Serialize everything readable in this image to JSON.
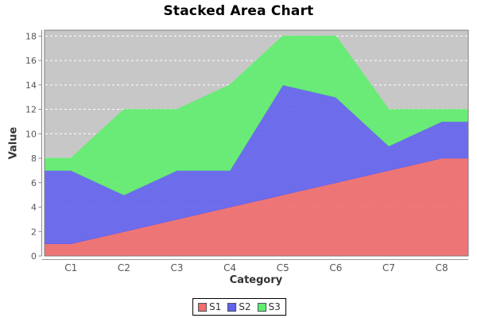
{
  "title": "Stacked Area Chart",
  "chart_data": {
    "type": "area",
    "stacked": true,
    "title": "Stacked Area Chart",
    "xlabel": "Category",
    "ylabel": "Value",
    "categories": [
      "C1",
      "C2",
      "C3",
      "C4",
      "C5",
      "C6",
      "C7",
      "C8"
    ],
    "series": [
      {
        "name": "S1",
        "color": "#f26c6c",
        "values": [
          1,
          2,
          3,
          4,
          5,
          6,
          7,
          8
        ]
      },
      {
        "name": "S2",
        "color": "#6363ee",
        "values": [
          6,
          3,
          4,
          3,
          9,
          7,
          2,
          3
        ]
      },
      {
        "name": "S3",
        "color": "#5fee6e",
        "values": [
          1,
          7,
          5,
          7,
          4,
          5,
          3,
          1
        ]
      }
    ],
    "cumulative_tops": {
      "S1": [
        1,
        2,
        3,
        4,
        5,
        6,
        7,
        8
      ],
      "S2": [
        7,
        5,
        7,
        7,
        14,
        13,
        9,
        11
      ],
      "S3": [
        8,
        12,
        12,
        14,
        18,
        18,
        12,
        12
      ]
    },
    "ylim": [
      0,
      18
    ],
    "y_ticks": [
      0,
      2,
      4,
      6,
      8,
      10,
      12,
      14,
      16,
      18
    ],
    "grid": "horizontal-dashed-white",
    "legend_position": "bottom",
    "plot_bg": "#c7c7c7",
    "grid_color": "#ffffff",
    "tick_label_color": "#555555",
    "axis_label_color": "#333333"
  },
  "legend": {
    "items": [
      {
        "label": "S1",
        "color": "#f26c6c"
      },
      {
        "label": "S2",
        "color": "#6363ee"
      },
      {
        "label": "S3",
        "color": "#5fee6e"
      }
    ]
  }
}
